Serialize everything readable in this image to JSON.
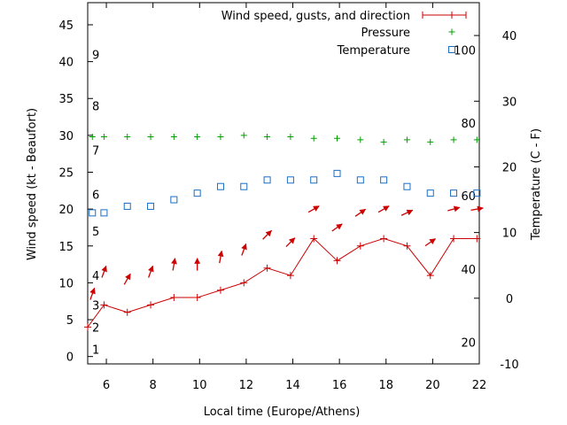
{
  "chart_data": {
    "type": "line",
    "xlabel": "Local time (Europe/Athens)",
    "ylabel": "Wind speed (kt - Beaufort)",
    "y2label": "Temperature (C - F)",
    "xlim": [
      5.2,
      22
    ],
    "ylim": [
      -1,
      48
    ],
    "y2lim": [
      -10,
      45
    ],
    "x_ticks": [
      "6",
      "8",
      "10",
      "12",
      "14",
      "16",
      "18",
      "20",
      "22"
    ],
    "y_ticks": [
      "0",
      "5",
      "10",
      "15",
      "20",
      "25",
      "30",
      "35",
      "40",
      "45"
    ],
    "y2_ticks": [
      "-10",
      "0",
      "10",
      "20",
      "30",
      "40"
    ],
    "beaufort_ticks": [
      {
        "label": "1",
        "kt": 1
      },
      {
        "label": "2",
        "kt": 4
      },
      {
        "label": "3",
        "kt": 7
      },
      {
        "label": "4",
        "kt": 11
      },
      {
        "label": "5",
        "kt": 17
      },
      {
        "label": "6",
        "kt": 22
      },
      {
        "label": "7",
        "kt": 28
      },
      {
        "label": "8",
        "kt": 34
      },
      {
        "label": "9",
        "kt": 41
      }
    ],
    "fahrenheit_ticks": [
      {
        "label": "20",
        "c": -6.7
      },
      {
        "label": "40",
        "c": 4.4
      },
      {
        "label": "60",
        "c": 15.6
      },
      {
        "label": "80",
        "c": 26.7
      },
      {
        "label": "100",
        "c": 37.8
      }
    ],
    "legend_position": "top-right",
    "series": [
      {
        "name": "Wind speed, gusts, and direction",
        "color": "#cc0000",
        "x": [
          5.2,
          5.9,
          6.9,
          7.9,
          8.9,
          9.9,
          10.9,
          11.9,
          12.9,
          13.9,
          14.9,
          15.9,
          16.9,
          17.9,
          18.9,
          19.9,
          20.9,
          21.9
        ],
        "y": [
          4,
          7,
          6,
          7,
          8,
          8,
          9,
          10,
          12,
          11,
          16,
          13,
          15,
          16,
          15,
          11,
          16,
          16
        ]
      },
      {
        "name": "Pressure",
        "color": "#00a000",
        "x": [
          5.4,
          5.9,
          6.9,
          7.9,
          8.9,
          9.9,
          10.9,
          11.9,
          12.9,
          13.9,
          14.9,
          15.9,
          16.9,
          17.9,
          18.9,
          19.9,
          20.9,
          21.9
        ],
        "y": [
          29.8,
          29.8,
          29.8,
          29.8,
          29.8,
          29.8,
          29.8,
          30.0,
          29.8,
          29.8,
          29.6,
          29.6,
          29.4,
          29.1,
          29.4,
          29.1,
          29.4,
          29.4
        ]
      },
      {
        "name": "Temperature",
        "color": "#1a6fc4",
        "x": [
          5.4,
          5.9,
          6.9,
          7.9,
          8.9,
          9.9,
          10.9,
          11.9,
          12.9,
          13.9,
          14.9,
          15.9,
          16.9,
          17.9,
          18.9,
          19.9,
          20.9,
          21.9
        ],
        "y": [
          13,
          13,
          14,
          14,
          15,
          16,
          17,
          17,
          18,
          18,
          18,
          19,
          18,
          18,
          17,
          16,
          16,
          16
        ]
      }
    ],
    "wind_direction_arrows": {
      "color": "#cc0000",
      "points": [
        {
          "x": 5.4,
          "y": 8.5,
          "deg": 200
        },
        {
          "x": 5.9,
          "y": 11.5,
          "deg": 200
        },
        {
          "x": 6.9,
          "y": 10.5,
          "deg": 210
        },
        {
          "x": 7.9,
          "y": 11.5,
          "deg": 200
        },
        {
          "x": 8.9,
          "y": 12.5,
          "deg": 190
        },
        {
          "x": 9.9,
          "y": 12.5,
          "deg": 180
        },
        {
          "x": 10.9,
          "y": 13.5,
          "deg": 190
        },
        {
          "x": 11.9,
          "y": 14.5,
          "deg": 200
        },
        {
          "x": 12.9,
          "y": 16.5,
          "deg": 225
        },
        {
          "x": 13.9,
          "y": 15.5,
          "deg": 225
        },
        {
          "x": 14.9,
          "y": 20.0,
          "deg": 240
        },
        {
          "x": 15.9,
          "y": 17.5,
          "deg": 235
        },
        {
          "x": 16.9,
          "y": 19.5,
          "deg": 235
        },
        {
          "x": 17.9,
          "y": 20.0,
          "deg": 240
        },
        {
          "x": 18.9,
          "y": 19.5,
          "deg": 245
        },
        {
          "x": 19.9,
          "y": 15.5,
          "deg": 235
        },
        {
          "x": 20.9,
          "y": 20.0,
          "deg": 255
        },
        {
          "x": 21.9,
          "y": 20.0,
          "deg": 260
        }
      ]
    }
  }
}
